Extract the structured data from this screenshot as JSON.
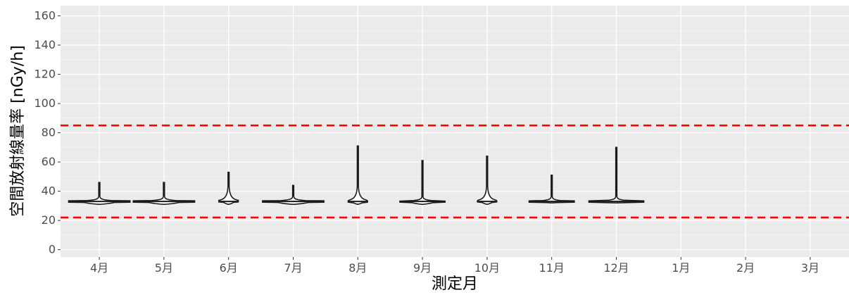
{
  "chart_data": {
    "type": "violin",
    "xlabel": "測定月",
    "ylabel": "空間放射線量率 [nGy/h]",
    "ylim": [
      -5,
      167
    ],
    "yticks": [
      0,
      20,
      40,
      60,
      80,
      100,
      120,
      140,
      160
    ],
    "categories": [
      "4月",
      "5月",
      "6月",
      "7月",
      "8月",
      "9月",
      "10月",
      "11月",
      "12月",
      "1月",
      "2月",
      "3月"
    ],
    "grid": true,
    "background": "#ebebeb",
    "grid_color": "#ffffff",
    "violins": [
      {
        "category": "4月",
        "min": 31,
        "max": 46,
        "center": 33,
        "max_width_frac": 0.95
      },
      {
        "category": "5月",
        "min": 31,
        "max": 46,
        "center": 33,
        "max_width_frac": 0.95
      },
      {
        "category": "6月",
        "min": 31,
        "max": 53,
        "center": 33,
        "max_width_frac": 0.3
      },
      {
        "category": "7月",
        "min": 31,
        "max": 44,
        "center": 33,
        "max_width_frac": 0.95
      },
      {
        "category": "8月",
        "min": 31,
        "max": 71,
        "center": 33,
        "max_width_frac": 0.3
      },
      {
        "category": "9月",
        "min": 31,
        "max": 61,
        "center": 33,
        "max_width_frac": 0.7
      },
      {
        "category": "10月",
        "min": 31,
        "max": 64,
        "center": 33,
        "max_width_frac": 0.3
      },
      {
        "category": "11月",
        "min": 32,
        "max": 51,
        "center": 33,
        "max_width_frac": 0.7
      },
      {
        "category": "12月",
        "min": 32,
        "max": 70,
        "center": 33,
        "max_width_frac": 0.85
      }
    ],
    "reference_lines": [
      {
        "y": 85,
        "color": "#ff0000",
        "style": "dashed"
      },
      {
        "y": 22,
        "color": "#ff0000",
        "style": "dashed"
      }
    ],
    "violin_fill": "#ffffff",
    "violin_stroke": "#1a1a1a"
  }
}
